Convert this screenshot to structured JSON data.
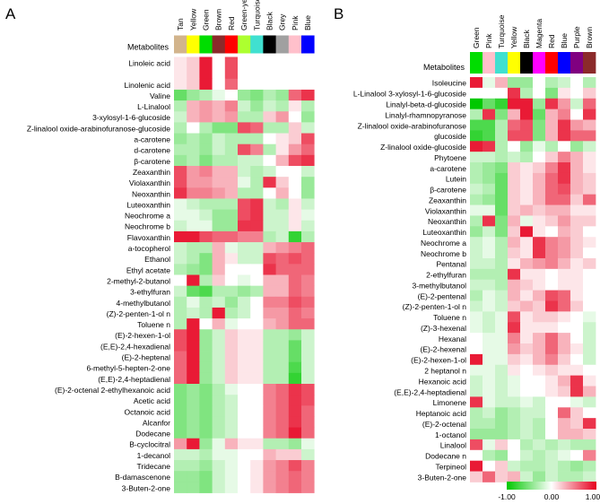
{
  "chart_data": [
    {
      "type": "heatmap",
      "panel_label": "A",
      "row_header": "Metabolites",
      "columns": [
        "Tan",
        "Yellow",
        "Green",
        "Brown",
        "Red",
        "Green-yellow",
        "Turquoise",
        "Black",
        "Grey",
        "Pink",
        "Blue"
      ],
      "column_colors": [
        "#d2b48c",
        "#ffff00",
        "#00dd00",
        "#8b2a2a",
        "#ff0000",
        "#adff2f",
        "#40e0d0",
        "#000000",
        "#a0a0a0",
        "#ffc0cb",
        "#0000ff"
      ],
      "rows": [
        "Linoleic acid",
        "Linolenic acid",
        "Valine",
        "L-Linalool",
        "3-xylosyl-1-6-glucoside",
        "Z-linalool oxide-arabinofuranose-glucoside",
        "a-carotene",
        "d-carotene",
        "β-carotene",
        "Zeaxanthin",
        "Violaxanthin",
        "Neoxanthin",
        "Luteoxanthin",
        "Neochrome a",
        "Neochrome b",
        "Flavoxanthin",
        "a-tocopherol",
        "Ethanol",
        "Ethyl acetate",
        "2-methyl-2-butanol",
        "3-ethylfuran",
        "4-methylbutanol",
        "(Z)-2-penten-1-ol n",
        "Toluene n",
        "(E)-2-hexen-1-ol",
        "(E,E)-2,4-hexadienal",
        "(E)-2-heptenal",
        "6-methyl-5-hepten-2-one",
        "(E,E)-2,4-heptadienal",
        "(E)-2-octenal 2-ethylhexanoic acid",
        "Acetic acid",
        "Octanoic acid",
        "Alcanfor",
        "Dodecane",
        "B-cyclocitral",
        "1-decanol",
        "Tridecane",
        "B-damascenone",
        "3-Buten-2-one"
      ],
      "groups": [
        2,
        1,
        1,
        1,
        1,
        1,
        1,
        1,
        1,
        1,
        1,
        1,
        1,
        1,
        1,
        1,
        1,
        1,
        1,
        1,
        1,
        1,
        1,
        1,
        1,
        1,
        1,
        1,
        1,
        1,
        1,
        1,
        1,
        1,
        1,
        1,
        1,
        1,
        1
      ],
      "values": [
        [
          0.1,
          0.2,
          0.9,
          0.0,
          0.7,
          0.0,
          0.0,
          0.0,
          0.0,
          0.0,
          0.0
        ],
        [
          0.1,
          0.2,
          0.9,
          0.0,
          0.6,
          0.0,
          0.0,
          0.0,
          0.0,
          0.0,
          0.0
        ],
        [
          -0.6,
          -0.4,
          -0.3,
          -0.1,
          0.0,
          -0.4,
          -0.5,
          -0.3,
          -0.4,
          0.6,
          0.8
        ],
        [
          -0.3,
          0.3,
          0.4,
          0.3,
          0.5,
          -0.2,
          -0.4,
          -0.2,
          -0.3,
          0.1,
          -0.3
        ],
        [
          -0.2,
          0.3,
          0.4,
          0.3,
          0.4,
          -0.3,
          -0.3,
          0.2,
          0.4,
          0.0,
          -0.4
        ],
        [
          -0.3,
          0.0,
          -0.3,
          -0.5,
          -0.5,
          0.7,
          0.6,
          -0.3,
          -0.3,
          0.2,
          -0.2
        ],
        [
          -0.4,
          -0.3,
          -0.4,
          -0.2,
          -0.3,
          -0.3,
          -0.3,
          0.0,
          0.1,
          0.2,
          0.7
        ],
        [
          -0.3,
          -0.3,
          -0.4,
          -0.2,
          -0.3,
          0.7,
          0.5,
          -0.3,
          0.1,
          0.4,
          0.6
        ],
        [
          -0.4,
          -0.3,
          -0.5,
          -0.3,
          -0.3,
          -0.2,
          -0.2,
          0.0,
          0.3,
          0.7,
          0.8
        ],
        [
          0.7,
          0.4,
          0.5,
          0.3,
          0.3,
          -0.2,
          -0.3,
          -0.2,
          0.0,
          0.0,
          -0.2
        ],
        [
          0.7,
          0.4,
          0.4,
          0.3,
          0.3,
          -0.1,
          -0.3,
          0.8,
          0.2,
          0.0,
          -0.4
        ],
        [
          0.8,
          0.5,
          0.5,
          0.4,
          0.3,
          -0.3,
          -0.3,
          0.0,
          0.3,
          0.0,
          -0.4
        ],
        [
          -0.1,
          -0.2,
          -0.3,
          -0.3,
          -0.3,
          0.7,
          0.8,
          -0.2,
          -0.3,
          0.1,
          -0.2
        ],
        [
          -0.1,
          -0.1,
          -0.2,
          -0.4,
          -0.4,
          0.7,
          0.8,
          -0.2,
          -0.2,
          0.1,
          -0.1
        ],
        [
          -0.2,
          -0.1,
          -0.1,
          -0.4,
          -0.4,
          0.8,
          0.8,
          -0.2,
          -0.2,
          0.1,
          -0.2
        ],
        [
          0.9,
          0.9,
          0.7,
          0.6,
          0.6,
          0.5,
          0.5,
          -0.3,
          -0.2,
          -0.8,
          -0.3
        ],
        [
          -0.2,
          -0.3,
          -0.3,
          0.3,
          -0.1,
          -0.2,
          -0.2,
          0.3,
          0.4,
          0.5,
          0.6
        ],
        [
          -0.2,
          -0.3,
          -0.5,
          0.3,
          0.1,
          -0.2,
          -0.2,
          0.7,
          0.6,
          0.7,
          0.6
        ],
        [
          -0.3,
          -0.4,
          -0.5,
          0.3,
          0.0,
          0.0,
          0.0,
          0.8,
          0.6,
          0.6,
          0.6
        ],
        [
          0.0,
          0.9,
          -0.3,
          0.2,
          0.0,
          -0.1,
          0.0,
          0.3,
          0.3,
          0.6,
          0.5
        ],
        [
          -0.2,
          -0.6,
          -0.7,
          -0.3,
          -0.3,
          -0.4,
          -0.3,
          0.3,
          0.3,
          0.6,
          0.5
        ],
        [
          -0.3,
          -0.1,
          -0.3,
          -0.2,
          -0.4,
          -0.2,
          0.0,
          0.5,
          0.5,
          0.7,
          0.6
        ],
        [
          -0.3,
          -0.2,
          -0.3,
          0.9,
          -0.3,
          -0.2,
          0.0,
          0.4,
          0.4,
          0.6,
          0.5
        ],
        [
          -0.3,
          0.9,
          0.0,
          0.3,
          -0.1,
          0.0,
          0.0,
          0.3,
          0.4,
          0.6,
          0.6
        ],
        [
          0.7,
          0.9,
          -0.4,
          -0.2,
          0.2,
          0.1,
          0.1,
          -0.3,
          -0.3,
          -0.4,
          -0.2
        ],
        [
          0.7,
          0.9,
          -0.4,
          -0.2,
          0.2,
          0.1,
          0.1,
          -0.3,
          -0.3,
          -0.6,
          -0.2
        ],
        [
          0.6,
          0.9,
          -0.4,
          -0.2,
          0.2,
          0.1,
          0.1,
          -0.3,
          -0.3,
          -0.6,
          -0.2
        ],
        [
          0.6,
          0.9,
          -0.4,
          -0.2,
          0.2,
          0.1,
          0.1,
          -0.3,
          -0.3,
          -0.7,
          -0.2
        ],
        [
          0.6,
          0.9,
          -0.4,
          -0.2,
          0.2,
          0.1,
          0.1,
          -0.3,
          -0.3,
          -0.8,
          -0.2
        ],
        [
          -0.5,
          -0.4,
          -0.5,
          -0.3,
          -0.1,
          0.0,
          0.0,
          0.5,
          0.6,
          0.8,
          0.7
        ],
        [
          -0.5,
          -0.4,
          -0.5,
          -0.3,
          -0.2,
          0.0,
          0.0,
          0.5,
          0.6,
          0.8,
          0.7
        ],
        [
          -0.5,
          -0.4,
          -0.5,
          -0.3,
          -0.2,
          0.0,
          0.0,
          0.5,
          0.6,
          0.8,
          0.6
        ],
        [
          -0.5,
          -0.4,
          -0.5,
          -0.3,
          -0.2,
          0.0,
          0.0,
          0.5,
          0.6,
          0.8,
          0.6
        ],
        [
          -0.5,
          -0.4,
          -0.5,
          -0.3,
          -0.2,
          0.0,
          0.0,
          0.5,
          0.6,
          0.9,
          0.6
        ],
        [
          0.4,
          0.9,
          -0.4,
          -0.1,
          0.3,
          0.1,
          0.1,
          -0.3,
          -0.3,
          -0.4,
          -0.1
        ],
        [
          -0.2,
          -0.2,
          -0.3,
          -0.1,
          -0.1,
          0.0,
          0.0,
          0.3,
          0.2,
          0.2,
          -0.2
        ],
        [
          -0.3,
          -0.3,
          -0.4,
          -0.2,
          -0.1,
          0.0,
          0.1,
          0.4,
          0.5,
          0.7,
          0.5
        ],
        [
          -0.4,
          -0.4,
          -0.5,
          -0.2,
          -0.1,
          0.0,
          0.1,
          0.4,
          0.5,
          0.6,
          0.5
        ],
        [
          -0.4,
          -0.4,
          -0.5,
          -0.2,
          -0.1,
          0.0,
          0.1,
          0.4,
          0.5,
          0.6,
          0.5
        ]
      ]
    },
    {
      "type": "heatmap",
      "panel_label": "B",
      "row_header": "Metabolites",
      "columns": [
        "Green",
        "Pink",
        "Turquoise",
        "Yellow",
        "Black",
        "Magenta",
        "Red",
        "Blue",
        "Purple",
        "Brown"
      ],
      "column_colors": [
        "#00dd00",
        "#ffc0cb",
        "#40e0d0",
        "#ffff00",
        "#000000",
        "#ff00ff",
        "#ff0000",
        "#0000ff",
        "#800080",
        "#8b2a2a"
      ],
      "rows": [
        "Isoleucine",
        "L-Linalool 3-xylosyl-1-6-glucoside",
        "Linalyl-beta-d-glucoside",
        "Linalyl-rhamnopyranose",
        "Z-linalool oxide-arabinofuranose",
        "glucoside",
        "Z-linalool oxide-glucoside",
        "Phytoene",
        "a-carotene",
        "Lutein",
        "β-carotene",
        "Zeaxanthin",
        "Violaxanthin",
        "Neoxanthin",
        "Luteoxanthin",
        "Neochrome a",
        "Neochrome b",
        "Pentanal",
        "2-ethylfuran",
        "3-methylbutanol",
        "(E)-2-pentenal",
        "(Z)-2-penten-1-ol n",
        "Toluene n",
        "(Z)-3-hexenal",
        "Hexanal",
        "(E)-2-hexenal",
        "(E)-2-hexen-1-ol",
        "2 heptanol n",
        "Hexanoic acid",
        "(E,E)-2,4-heptadienal",
        "Limonene",
        "Heptanoic acid",
        "(E)-2-octenal",
        "1-octanol",
        "Linalool",
        "Dodecane n",
        "Terpineol",
        "3-Buten-2-one"
      ],
      "groups": [
        1,
        1,
        1,
        1,
        1,
        1,
        1,
        1,
        1,
        1,
        1,
        1,
        1,
        1,
        1,
        1,
        1,
        1,
        1,
        1,
        1,
        1,
        1,
        1,
        1,
        1,
        1,
        1,
        1,
        1,
        1,
        1,
        1,
        1,
        1,
        1,
        1,
        1
      ],
      "values": [
        [
          0.9,
          -0.1,
          0.3,
          -0.4,
          -0.4,
          0.0,
          -0.3,
          -0.2,
          0.0,
          -0.3
        ],
        [
          0.0,
          0.0,
          0.0,
          0.8,
          -0.3,
          0.0,
          -0.5,
          0.1,
          0.0,
          0.2
        ],
        [
          -1.0,
          -0.6,
          -0.8,
          0.9,
          0.9,
          -0.4,
          0.8,
          0.4,
          -0.2,
          0.6
        ],
        [
          -0.3,
          0.8,
          -0.5,
          0.3,
          0.9,
          -0.6,
          0.3,
          0.5,
          0.0,
          0.8
        ],
        [
          -0.7,
          -0.7,
          -0.3,
          0.6,
          0.7,
          -0.5,
          0.3,
          0.8,
          0.4,
          0.3
        ],
        [
          -0.8,
          -0.7,
          -0.3,
          0.7,
          0.7,
          -0.5,
          0.3,
          0.8,
          0.6,
          0.6
        ],
        [
          0.9,
          0.8,
          -0.3,
          0.0,
          -0.4,
          -0.1,
          -0.3,
          0.0,
          -0.4,
          -0.2
        ],
        [
          -0.2,
          -0.2,
          -0.3,
          -0.2,
          -0.3,
          0.0,
          0.2,
          0.5,
          0.3,
          0.1
        ],
        [
          -0.3,
          -0.4,
          -0.5,
          0.2,
          0.1,
          0.2,
          0.5,
          0.8,
          0.3,
          0.1
        ],
        [
          -0.3,
          -0.4,
          -0.6,
          0.2,
          0.1,
          0.3,
          0.6,
          0.8,
          0.3,
          0.2
        ],
        [
          -0.2,
          -0.3,
          -0.6,
          0.2,
          0.1,
          0.3,
          0.6,
          0.7,
          0.3,
          0.2
        ],
        [
          -0.3,
          -0.4,
          -0.6,
          0.2,
          0.1,
          0.3,
          0.6,
          0.6,
          0.2,
          0.6
        ],
        [
          -0.1,
          -0.1,
          -0.6,
          0.2,
          0.3,
          0.2,
          0.3,
          0.3,
          0.1,
          0.1
        ],
        [
          -0.3,
          0.8,
          -0.5,
          0.3,
          -0.1,
          0.1,
          0.2,
          0.4,
          0.2,
          0.2
        ],
        [
          -0.4,
          -0.2,
          -0.5,
          0.2,
          0.9,
          0.1,
          0.0,
          0.3,
          0.2,
          0.0
        ],
        [
          -0.2,
          -0.1,
          -0.3,
          0.3,
          0.1,
          0.8,
          0.5,
          0.4,
          0.2,
          0.1
        ],
        [
          -0.2,
          -0.1,
          -0.3,
          0.2,
          0.1,
          0.8,
          0.5,
          0.4,
          0.2,
          0.0
        ],
        [
          -0.2,
          -0.2,
          -0.3,
          0.1,
          0.3,
          0.4,
          0.5,
          0.3,
          0.1,
          0.2
        ],
        [
          -0.3,
          -0.3,
          -0.3,
          0.8,
          0.1,
          0.1,
          0.0,
          0.1,
          0.1,
          0.0
        ],
        [
          -0.2,
          -0.2,
          -0.3,
          0.3,
          0.2,
          0.1,
          0.0,
          0.1,
          0.1,
          0.0
        ],
        [
          -0.3,
          -0.1,
          -0.2,
          0.3,
          0.1,
          0.3,
          0.7,
          0.6,
          0.1,
          0.0
        ],
        [
          -0.2,
          -0.1,
          -0.2,
          0.2,
          0.3,
          0.2,
          0.8,
          0.6,
          0.2,
          0.0
        ],
        [
          -0.1,
          -0.2,
          -0.1,
          0.7,
          0.1,
          0.2,
          0.2,
          0.1,
          0.0,
          -0.1
        ],
        [
          -0.1,
          -0.2,
          -0.1,
          0.8,
          0.1,
          0.1,
          0.1,
          0.0,
          0.0,
          -0.2
        ],
        [
          0.0,
          -0.1,
          -0.1,
          0.5,
          0.1,
          0.3,
          0.6,
          0.3,
          0.0,
          -0.2
        ],
        [
          0.0,
          -0.1,
          -0.1,
          0.4,
          0.2,
          0.3,
          0.6,
          0.3,
          0.1,
          -0.2
        ],
        [
          0.9,
          -0.1,
          -0.1,
          0.2,
          0.1,
          0.3,
          0.5,
          0.2,
          0.0,
          -0.2
        ],
        [
          -0.1,
          -0.1,
          -0.2,
          0.1,
          0.0,
          0.1,
          0.2,
          0.1,
          0.1,
          0.0
        ],
        [
          -0.2,
          -0.1,
          -0.2,
          -0.1,
          0.0,
          0.0,
          0.1,
          0.3,
          0.8,
          0.1
        ],
        [
          -0.2,
          -0.1,
          -0.2,
          -0.1,
          0.0,
          0.0,
          0.1,
          0.2,
          0.8,
          0.3
        ],
        [
          0.8,
          -0.1,
          -0.2,
          -0.2,
          -0.1,
          -0.2,
          0.0,
          0.0,
          -0.1,
          -0.2
        ],
        [
          -0.3,
          -0.2,
          -0.4,
          -0.3,
          -0.2,
          -0.2,
          0.0,
          0.6,
          0.2,
          0.0
        ],
        [
          -0.3,
          -0.3,
          -0.4,
          -0.3,
          -0.2,
          -0.3,
          0.0,
          0.3,
          0.2,
          0.8
        ],
        [
          -0.4,
          -0.4,
          -0.4,
          -0.3,
          -0.2,
          -0.3,
          0.0,
          0.3,
          0.3,
          0.2
        ],
        [
          0.7,
          -0.1,
          0.2,
          0.0,
          -0.3,
          -0.2,
          -0.3,
          -0.2,
          -0.3,
          -0.3
        ],
        [
          0.0,
          -0.3,
          -0.4,
          0.0,
          -0.2,
          -0.3,
          -0.2,
          -0.1,
          0.0,
          0.5
        ],
        [
          0.9,
          0.0,
          0.2,
          -0.2,
          -0.3,
          -0.3,
          -0.2,
          -0.3,
          -0.4,
          -0.3
        ],
        [
          0.2,
          0.6,
          0.2,
          0.3,
          -0.2,
          -0.4,
          -0.2,
          -0.3,
          -0.3,
          -0.2
        ]
      ],
      "colorbar": {
        "min": -1.0,
        "max": 1.0,
        "ticks": [
          "-1.00",
          "0.00",
          "1.00"
        ],
        "colors": [
          "#00c800",
          "#ffffff",
          "#e6001e"
        ]
      }
    }
  ]
}
